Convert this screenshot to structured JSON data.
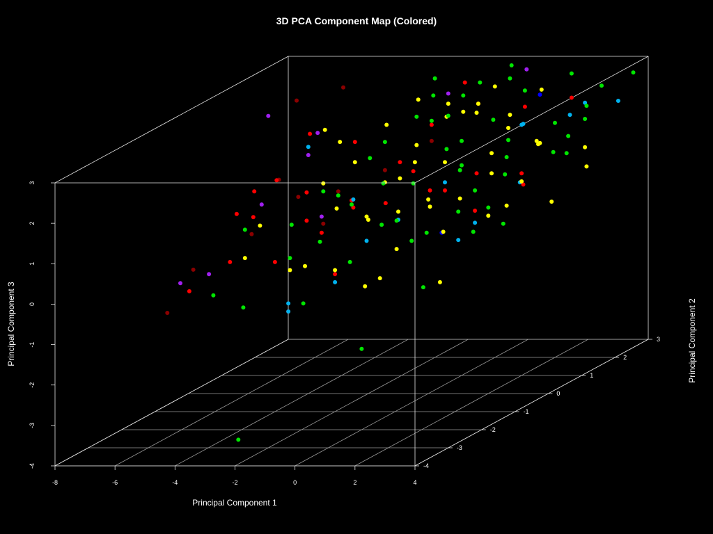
{
  "chart_data": {
    "type": "scatter",
    "projection": "3d",
    "title": "3D PCA Component Map (Colored)",
    "xlabel": "Principal Component 1",
    "ylabel": "Principal Component 2",
    "zlabel": "Principal Component 3",
    "xlim": [
      -8,
      4
    ],
    "ylim": [
      -4,
      3
    ],
    "zlim": [
      -4,
      3
    ],
    "x_ticks": [
      "-8",
      "-6",
      "-4",
      "-2",
      "0",
      "2",
      "4"
    ],
    "y_ticks": [
      "-4",
      "-3",
      "-2",
      "-1",
      "0",
      "1",
      "2",
      "3"
    ],
    "z_ticks": [
      "-4",
      "-3",
      "-2",
      "-1",
      "0",
      "1",
      "2",
      "3"
    ],
    "grid": true,
    "legend": "none",
    "background": "#000000",
    "colors": {
      "yellow": "#ffff00",
      "green": "#00e600",
      "red": "#ff0000",
      "darkred": "#8b0000",
      "skyblue": "#00b2ee",
      "purple": "#a020f0",
      "blue": "#0000ff"
    },
    "points": [
      {
        "x": -1.0,
        "y": 1.5,
        "z": 2.75,
        "c": "purple"
      },
      {
        "x": 0.5,
        "y": 2.5,
        "z": 2.9,
        "c": "purple"
      },
      {
        "x": -6.0,
        "y": 0.6,
        "z": 2.6,
        "c": "purple"
      },
      {
        "x": -4.8,
        "y": 1.0,
        "z": 2.0,
        "c": "purple"
      },
      {
        "x": -5.0,
        "y": -0.5,
        "z": 0.9,
        "c": "purple"
      },
      {
        "x": -6.2,
        "y": -1.0,
        "z": -0.6,
        "c": "purple"
      },
      {
        "x": -6.6,
        "y": -1.5,
        "z": -0.6,
        "c": "purple"
      },
      {
        "x": -3.0,
        "y": -0.5,
        "z": 0.6,
        "c": "purple"
      },
      {
        "x": -4.0,
        "y": 0.0,
        "z": 1.9,
        "c": "purple"
      },
      {
        "x": -5.5,
        "y": 1.0,
        "z": 2.8,
        "c": "darkred"
      },
      {
        "x": -4.5,
        "y": 1.5,
        "z": 2.9,
        "c": "darkred"
      },
      {
        "x": -6.5,
        "y": -1.2,
        "z": -0.4,
        "c": "darkred"
      },
      {
        "x": -6.7,
        "y": -1.8,
        "z": -1.2,
        "c": "darkred"
      },
      {
        "x": -5.0,
        "y": -0.8,
        "z": 0.3,
        "c": "darkred"
      },
      {
        "x": -5.2,
        "y": 0.2,
        "z": 1.2,
        "c": "darkred"
      },
      {
        "x": -4.0,
        "y": -0.3,
        "z": 1.0,
        "c": "darkred"
      },
      {
        "x": -3.5,
        "y": 0.0,
        "z": 0.2,
        "c": "darkred"
      },
      {
        "x": -2.0,
        "y": 0.5,
        "z": 1.3,
        "c": "darkred"
      },
      {
        "x": -1.0,
        "y": 1.0,
        "z": 1.8,
        "c": "darkred"
      },
      {
        "x": -3.0,
        "y": 0.0,
        "z": 1.0,
        "c": "darkred"
      },
      {
        "x": -6.3,
        "y": -1.5,
        "z": -0.8,
        "c": "red"
      },
      {
        "x": -5.5,
        "y": -1.0,
        "z": -0.3,
        "c": "red"
      },
      {
        "x": -5.5,
        "y": -0.3,
        "z": 0.5,
        "c": "red"
      },
      {
        "x": -5.8,
        "y": 0.0,
        "z": 1.0,
        "c": "red"
      },
      {
        "x": -4.5,
        "y": 0.5,
        "z": 2.2,
        "c": "red"
      },
      {
        "x": -3.5,
        "y": -0.5,
        "z": 0.5,
        "c": "red"
      },
      {
        "x": -2.5,
        "y": 0.0,
        "z": 0.6,
        "c": "red"
      },
      {
        "x": -1.5,
        "y": 0.5,
        "z": 1.5,
        "c": "red"
      },
      {
        "x": -1.0,
        "y": 1.0,
        "z": 2.2,
        "c": "red"
      },
      {
        "x": 0.0,
        "y": 1.5,
        "z": 2.5,
        "c": "red"
      },
      {
        "x": 1.0,
        "y": 2.0,
        "z": 2.2,
        "c": "red"
      },
      {
        "x": 0.5,
        "y": 1.0,
        "z": 1.0,
        "c": "red"
      },
      {
        "x": -0.5,
        "y": 0.5,
        "z": 0.8,
        "c": "red"
      },
      {
        "x": 1.5,
        "y": 1.5,
        "z": 0.5,
        "c": "red"
      },
      {
        "x": -2.0,
        "y": -1.0,
        "z": -0.6,
        "c": "red"
      },
      {
        "x": -0.5,
        "y": 0.0,
        "z": 1.5,
        "c": "red"
      },
      {
        "x": 2.0,
        "y": 2.5,
        "z": 2.2,
        "c": "red"
      },
      {
        "x": -2.0,
        "y": -0.5,
        "z": 1.0,
        "c": "red"
      },
      {
        "x": -3.0,
        "y": 0.5,
        "z": 2.0,
        "c": "red"
      },
      {
        "x": 0.0,
        "y": 0.5,
        "z": 0.8,
        "c": "red"
      },
      {
        "x": 1.0,
        "y": 0.5,
        "z": 0.3,
        "c": "red"
      },
      {
        "x": -4.5,
        "y": -0.5,
        "z": 1.5,
        "c": "red"
      },
      {
        "x": -3.0,
        "y": -0.5,
        "z": 0.2,
        "c": "red"
      },
      {
        "x": -1.2,
        "y": -0.2,
        "z": 0.8,
        "c": "red"
      },
      {
        "x": -5.5,
        "y": -0.8,
        "z": 0.8,
        "c": "red"
      },
      {
        "x": -4.0,
        "y": -1.0,
        "z": -0.3,
        "c": "red"
      },
      {
        "x": -3.5,
        "y": -0.5,
        "z": 1.2,
        "c": "red"
      },
      {
        "x": -3.0,
        "y": -1.5,
        "z": -1.3,
        "c": "red"
      },
      {
        "x": 2.0,
        "y": 1.0,
        "z": 1.0,
        "c": "red"
      },
      {
        "x": -1.0,
        "y": 2.0,
        "z": 2.8,
        "c": "red"
      },
      {
        "x": -4.0,
        "y": 0.0,
        "z": 2.1,
        "c": "skyblue"
      },
      {
        "x": -2.5,
        "y": 0.0,
        "z": 0.8,
        "c": "skyblue"
      },
      {
        "x": -1.5,
        "y": -0.5,
        "z": 0.0,
        "c": "skyblue"
      },
      {
        "x": -2.0,
        "y": -1.0,
        "z": -0.8,
        "c": "skyblue"
      },
      {
        "x": -3.0,
        "y": -1.5,
        "z": -1.1,
        "c": "skyblue"
      },
      {
        "x": -3.0,
        "y": -1.5,
        "z": -1.3,
        "c": "skyblue"
      },
      {
        "x": 0.0,
        "y": 0.5,
        "z": 1.0,
        "c": "skyblue"
      },
      {
        "x": 1.0,
        "y": 0.5,
        "z": 0.0,
        "c": "skyblue"
      },
      {
        "x": 1.5,
        "y": 1.5,
        "z": 2.0,
        "c": "skyblue"
      },
      {
        "x": 2.5,
        "y": 2.0,
        "z": 2.0,
        "c": "skyblue"
      },
      {
        "x": 3.0,
        "y": 3.0,
        "z": 1.9,
        "c": "skyblue"
      },
      {
        "x": 2.5,
        "y": 0.5,
        "z": 1.0,
        "c": "skyblue"
      },
      {
        "x": -1.0,
        "y": 0.0,
        "z": 0.3,
        "c": "skyblue"
      },
      {
        "x": 1.0,
        "y": 0.0,
        "z": -0.2,
        "c": "skyblue"
      },
      {
        "x": 2.0,
        "y": 1.0,
        "z": 2.2,
        "c": "skyblue"
      },
      {
        "x": 3.0,
        "y": 2.0,
        "z": 2.3,
        "c": "skyblue"
      },
      {
        "x": 1.5,
        "y": 2.0,
        "z": 2.5,
        "c": "blue"
      },
      {
        "x": 1.0,
        "y": -0.5,
        "z": 0.2,
        "c": "blue"
      },
      {
        "x": -2.0,
        "y": -1.0,
        "z": -0.5,
        "c": "yellow"
      },
      {
        "x": -1.0,
        "y": 1.5,
        "z": 2.5,
        "c": "yellow"
      },
      {
        "x": -0.5,
        "y": 1.0,
        "z": 2.4,
        "c": "yellow"
      },
      {
        "x": 0.0,
        "y": 1.5,
        "z": 2.5,
        "c": "yellow"
      },
      {
        "x": 0.5,
        "y": 1.0,
        "z": 2.5,
        "c": "yellow"
      },
      {
        "x": -2.0,
        "y": 0.5,
        "z": 1.0,
        "c": "yellow"
      },
      {
        "x": -3.0,
        "y": 0.5,
        "z": 1.5,
        "c": "yellow"
      },
      {
        "x": -3.5,
        "y": 0.0,
        "z": 1.2,
        "c": "yellow"
      },
      {
        "x": -1.0,
        "y": 0.5,
        "z": 1.5,
        "c": "yellow"
      },
      {
        "x": 0.0,
        "y": 0.5,
        "z": 1.5,
        "c": "yellow"
      },
      {
        "x": 1.0,
        "y": 1.0,
        "z": 1.5,
        "c": "yellow"
      },
      {
        "x": 2.0,
        "y": 1.5,
        "z": 1.5,
        "c": "yellow"
      },
      {
        "x": 3.0,
        "y": 2.0,
        "z": 1.2,
        "c": "yellow"
      },
      {
        "x": 2.5,
        "y": 2.5,
        "z": 0.5,
        "c": "yellow"
      },
      {
        "x": 1.5,
        "y": 1.0,
        "z": 0.2,
        "c": "yellow"
      },
      {
        "x": 0.5,
        "y": 0.0,
        "z": 0.0,
        "c": "yellow"
      },
      {
        "x": -0.5,
        "y": -0.5,
        "z": -0.2,
        "c": "yellow"
      },
      {
        "x": -1.5,
        "y": -0.5,
        "z": 0.6,
        "c": "yellow"
      },
      {
        "x": -2.5,
        "y": -0.5,
        "z": 0.8,
        "c": "yellow"
      },
      {
        "x": -3.5,
        "y": -1.0,
        "z": -0.5,
        "c": "yellow"
      },
      {
        "x": -4.5,
        "y": -1.0,
        "z": 0.6,
        "c": "yellow"
      },
      {
        "x": -5.0,
        "y": -1.0,
        "z": -0.2,
        "c": "yellow"
      },
      {
        "x": -2.0,
        "y": 0.0,
        "z": 0.3,
        "c": "yellow"
      },
      {
        "x": -1.0,
        "y": 0.0,
        "z": 0.5,
        "c": "yellow"
      },
      {
        "x": 0.0,
        "y": 0.0,
        "z": 0.8,
        "c": "yellow"
      },
      {
        "x": 1.0,
        "y": 1.0,
        "z": 1.0,
        "c": "yellow"
      },
      {
        "x": 2.0,
        "y": 1.0,
        "z": 0.8,
        "c": "yellow"
      },
      {
        "x": 3.0,
        "y": 1.0,
        "z": 0.3,
        "c": "yellow"
      },
      {
        "x": -0.5,
        "y": 1.5,
        "z": 2.3,
        "c": "yellow"
      },
      {
        "x": 0.5,
        "y": 2.0,
        "z": 2.0,
        "c": "yellow"
      },
      {
        "x": 1.5,
        "y": 2.0,
        "z": 1.3,
        "c": "yellow"
      },
      {
        "x": -1.5,
        "y": 1.0,
        "z": 1.7,
        "c": "yellow"
      },
      {
        "x": -2.5,
        "y": 1.0,
        "z": 2.2,
        "c": "yellow"
      },
      {
        "x": -4.0,
        "y": 0.5,
        "z": 2.3,
        "c": "yellow"
      },
      {
        "x": -3.0,
        "y": -1.0,
        "z": -0.4,
        "c": "yellow"
      },
      {
        "x": -1.0,
        "y": -1.0,
        "z": -0.9,
        "c": "yellow"
      },
      {
        "x": 1.5,
        "y": -1.0,
        "z": -0.8,
        "c": "yellow"
      },
      {
        "x": 2.5,
        "y": 1.0,
        "z": 1.8,
        "c": "yellow"
      },
      {
        "x": 0.0,
        "y": 2.0,
        "z": 2.7,
        "c": "yellow"
      },
      {
        "x": -2.0,
        "y": 1.5,
        "z": 2.6,
        "c": "yellow"
      },
      {
        "x": -0.5,
        "y": -1.0,
        "z": -0.7,
        "c": "yellow"
      },
      {
        "x": -1.5,
        "y": 0.5,
        "z": 1.1,
        "c": "yellow"
      },
      {
        "x": 1.0,
        "y": 2.5,
        "z": 2.4,
        "c": "yellow"
      },
      {
        "x": 2.0,
        "y": 0.0,
        "z": 0.4,
        "c": "yellow"
      },
      {
        "x": -0.5,
        "y": 0.5,
        "z": 0.4,
        "c": "yellow"
      },
      {
        "x": 0.5,
        "y": 0.5,
        "z": 0.6,
        "c": "yellow"
      },
      {
        "x": -3.5,
        "y": 0.5,
        "z": 2.0,
        "c": "yellow"
      },
      {
        "x": 1.0,
        "y": 1.5,
        "z": 1.9,
        "c": "yellow"
      },
      {
        "x": -3.0,
        "y": 0.0,
        "z": 0.9,
        "c": "green"
      },
      {
        "x": -2.0,
        "y": 0.5,
        "z": 2.0,
        "c": "green"
      },
      {
        "x": -1.0,
        "y": 1.0,
        "z": 2.3,
        "c": "green"
      },
      {
        "x": 0.0,
        "y": 1.0,
        "z": 1.8,
        "c": "green"
      },
      {
        "x": 1.0,
        "y": 1.5,
        "z": 1.6,
        "c": "green"
      },
      {
        "x": 2.0,
        "y": 2.0,
        "z": 1.8,
        "c": "green"
      },
      {
        "x": 3.0,
        "y": 2.5,
        "z": 2.5,
        "c": "green"
      },
      {
        "x": 3.5,
        "y": 3.0,
        "z": 2.6,
        "c": "green"
      },
      {
        "x": 2.0,
        "y": 2.5,
        "z": 2.8,
        "c": "green"
      },
      {
        "x": 0.5,
        "y": 2.0,
        "z": 2.9,
        "c": "green"
      },
      {
        "x": -0.5,
        "y": 1.5,
        "z": 2.7,
        "c": "green"
      },
      {
        "x": -1.5,
        "y": 1.0,
        "z": 2.4,
        "c": "green"
      },
      {
        "x": -2.5,
        "y": 0.5,
        "z": 1.6,
        "c": "green"
      },
      {
        "x": -3.5,
        "y": 0.0,
        "z": 1.0,
        "c": "green"
      },
      {
        "x": -4.0,
        "y": -0.5,
        "z": 0.4,
        "c": "green"
      },
      {
        "x": -5.0,
        "y": -1.0,
        "z": 0.5,
        "c": "green"
      },
      {
        "x": -5.5,
        "y": -1.5,
        "z": -0.9,
        "c": "green"
      },
      {
        "x": -4.5,
        "y": -1.5,
        "z": -1.2,
        "c": "green"
      },
      {
        "x": -2.5,
        "y": -1.5,
        "z": -1.1,
        "c": "green"
      },
      {
        "x": 0.0,
        "y": -2.0,
        "z": -2.0,
        "c": "green"
      },
      {
        "x": -3.0,
        "y": -3.0,
        "z": -3.8,
        "c": "green"
      },
      {
        "x": 1.5,
        "y": -1.5,
        "z": -0.7,
        "c": "green"
      },
      {
        "x": 2.5,
        "y": 0.0,
        "z": 0.2,
        "c": "green"
      },
      {
        "x": 3.0,
        "y": 1.5,
        "z": 1.7,
        "c": "green"
      },
      {
        "x": 2.0,
        "y": 0.5,
        "z": 1.2,
        "c": "green"
      },
      {
        "x": 1.0,
        "y": 0.0,
        "z": 0.5,
        "c": "green"
      },
      {
        "x": 0.0,
        "y": -0.5,
        "z": 0.0,
        "c": "green"
      },
      {
        "x": -1.0,
        "y": -0.5,
        "z": 0.4,
        "c": "green"
      },
      {
        "x": -2.0,
        "y": -0.5,
        "z": 0.9,
        "c": "green"
      },
      {
        "x": -1.5,
        "y": 0.0,
        "z": 1.2,
        "c": "green"
      },
      {
        "x": -0.5,
        "y": 0.0,
        "z": 1.2,
        "c": "green"
      },
      {
        "x": 0.5,
        "y": 0.5,
        "z": 1.3,
        "c": "green"
      },
      {
        "x": 1.5,
        "y": 1.0,
        "z": 1.4,
        "c": "green"
      },
      {
        "x": 2.5,
        "y": 1.5,
        "z": 1.3,
        "c": "green"
      },
      {
        "x": 1.0,
        "y": 2.0,
        "z": 2.6,
        "c": "green"
      },
      {
        "x": -0.5,
        "y": 2.0,
        "z": 2.8,
        "c": "green"
      },
      {
        "x": -1.0,
        "y": 1.5,
        "z": 2.2,
        "c": "green"
      },
      {
        "x": 0.0,
        "y": 1.0,
        "z": 1.2,
        "c": "green"
      },
      {
        "x": 1.0,
        "y": 0.5,
        "z": 0.8,
        "c": "green"
      },
      {
        "x": 2.0,
        "y": 0.0,
        "z": 0.6,
        "c": "green"
      },
      {
        "x": 0.5,
        "y": -0.5,
        "z": 0.2,
        "c": "green"
      },
      {
        "x": -0.5,
        "y": -0.5,
        "z": 0.5,
        "c": "green"
      },
      {
        "x": -1.5,
        "y": -1.0,
        "z": -0.3,
        "c": "green"
      },
      {
        "x": -2.5,
        "y": -1.0,
        "z": 0.2,
        "c": "green"
      },
      {
        "x": -3.5,
        "y": -1.0,
        "z": -0.2,
        "c": "green"
      },
      {
        "x": 2.5,
        "y": 2.5,
        "z": 2.0,
        "c": "green"
      },
      {
        "x": 3.0,
        "y": 2.0,
        "z": 1.9,
        "c": "green"
      },
      {
        "x": 1.5,
        "y": 0.0,
        "z": 0.0,
        "c": "green"
      },
      {
        "x": 0.0,
        "y": 2.5,
        "z": 3.0,
        "c": "green"
      },
      {
        "x": -2.0,
        "y": 2.0,
        "z": 2.9,
        "c": "green"
      },
      {
        "x": -0.5,
        "y": 1.0,
        "z": 1.6,
        "c": "green"
      },
      {
        "x": 0.5,
        "y": 1.5,
        "z": 2.1,
        "c": "green"
      },
      {
        "x": 3.5,
        "y": 1.0,
        "z": 1.5,
        "c": "green"
      },
      {
        "x": -1.5,
        "y": 1.5,
        "z": 2.7,
        "c": "green"
      }
    ]
  }
}
